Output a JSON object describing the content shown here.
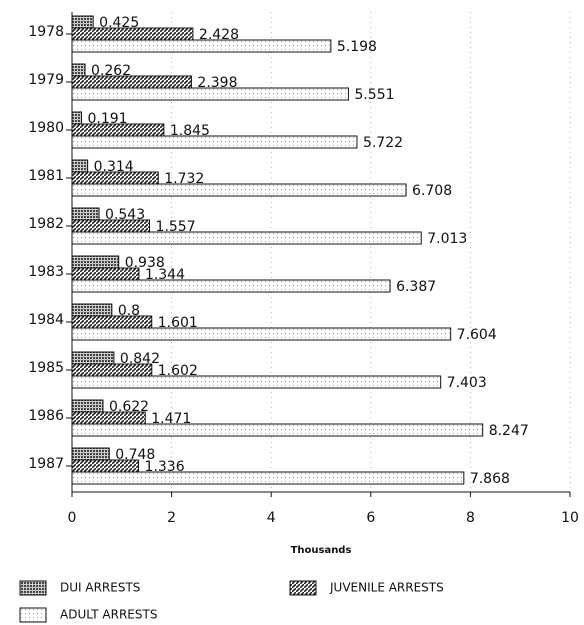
{
  "chart_data": {
    "type": "hbar",
    "categories": [
      "1978",
      "1979",
      "1980",
      "1981",
      "1982",
      "1983",
      "1984",
      "1985",
      "1986",
      "1987"
    ],
    "series": [
      {
        "name": "DUI ARRESTS",
        "color": "#444444",
        "values": [
          0.425,
          0.262,
          0.191,
          0.314,
          0.543,
          0.938,
          0.8,
          0.842,
          0.622,
          0.748
        ]
      },
      {
        "name": "JUVENILE ARRESTS",
        "color": "#222222",
        "values": [
          2.428,
          2.398,
          1.845,
          1.732,
          1.557,
          1.344,
          1.601,
          1.602,
          1.471,
          1.336
        ]
      },
      {
        "name": "ADULT ARRESTS",
        "color": "#999999",
        "values": [
          5.198,
          5.551,
          5.722,
          6.708,
          7.013,
          6.387,
          7.604,
          7.403,
          8.247,
          7.868
        ]
      }
    ],
    "xlabel": "Thousands",
    "xlim": [
      0,
      10
    ],
    "xticks": [
      0,
      2,
      4,
      6,
      8,
      10
    ],
    "grid": true
  }
}
